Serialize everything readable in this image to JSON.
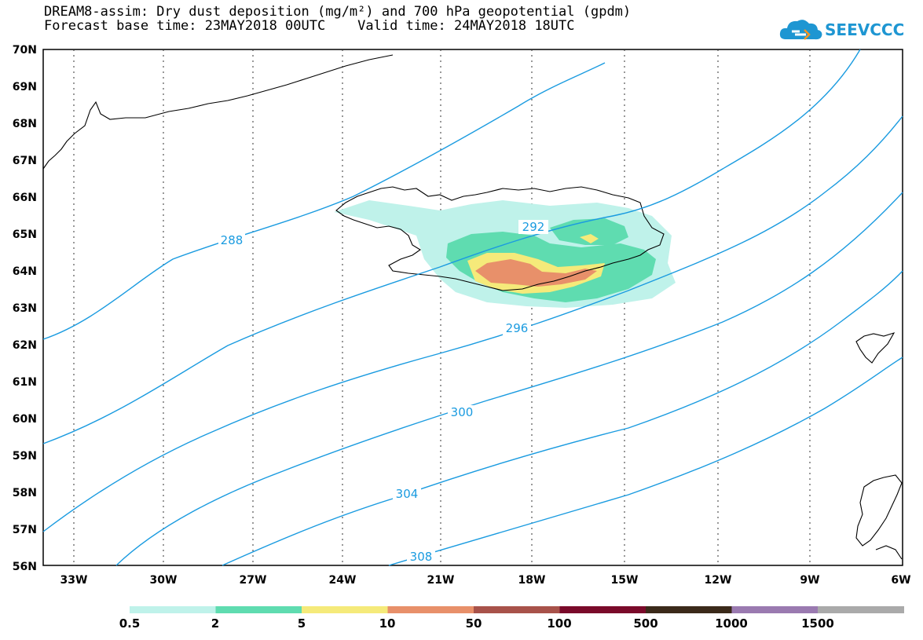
{
  "title": {
    "line1": "DREAM8-assim: Dry dust deposition (mg/m²) and 700 hPa geopotential (gpdm)",
    "line2": "Forecast base time: 23MAY2018 00UTC    Valid time: 24MAY2018 18UTC"
  },
  "logo": {
    "text": "SEEVCCC",
    "icon": "cloud-logo-icon",
    "color": "#1e96d2"
  },
  "axes": {
    "lat_labels": [
      "70N",
      "69N",
      "68N",
      "67N",
      "66N",
      "65N",
      "64N",
      "63N",
      "62N",
      "61N",
      "60N",
      "59N",
      "58N",
      "57N",
      "56N"
    ],
    "lon_labels": [
      "33W",
      "30W",
      "27W",
      "24W",
      "21W",
      "18W",
      "15W",
      "12W",
      "9W",
      "6W"
    ]
  },
  "contours": {
    "color": "#1a9be0",
    "labels": [
      "288",
      "292",
      "296",
      "300",
      "304",
      "308"
    ]
  },
  "legend": {
    "labels": [
      "0.5",
      "2",
      "5",
      "10",
      "50",
      "100",
      "500",
      "1000",
      "1500"
    ],
    "colors": [
      "#bff2ea",
      "#5fdcb0",
      "#f5ea7a",
      "#e8906a",
      "#a8524a",
      "#7a0a2a",
      "#3b2a1a",
      "#9a7ab0",
      "#aaaaaa"
    ]
  }
}
